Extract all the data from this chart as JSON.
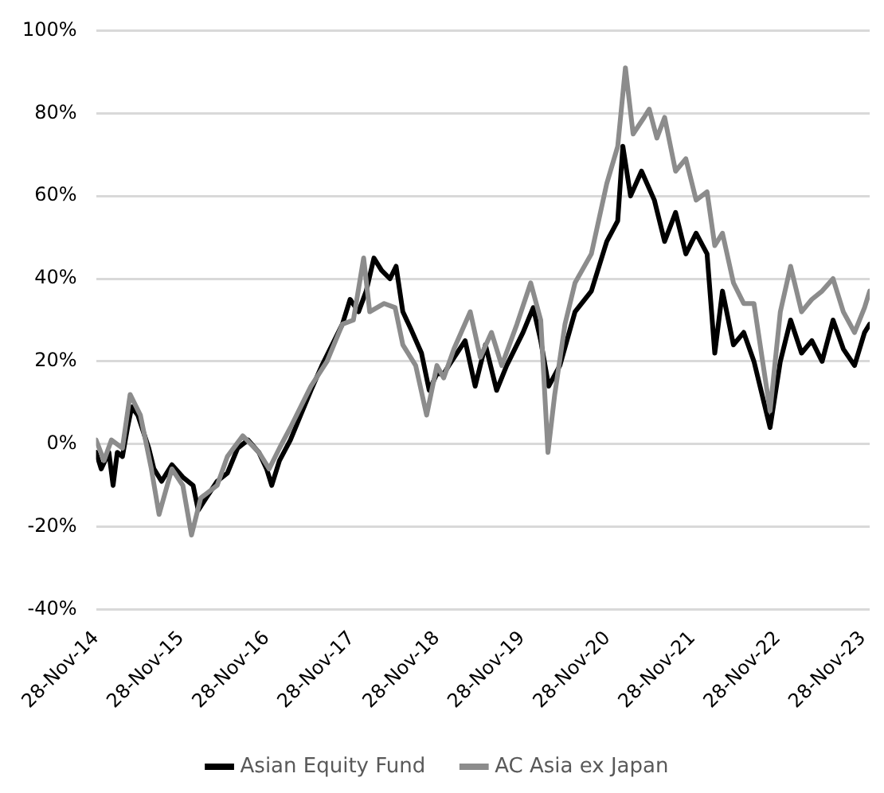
{
  "chart_data": {
    "type": "line",
    "legend": "bottom",
    "grid": "y",
    "marker": "none",
    "line_style": "solid",
    "xlim": [
      "2014-11-28",
      "2023-12-27"
    ],
    "xticks": [
      {
        "value": "2014-11-28",
        "label": "28-Nov-14"
      },
      {
        "value": "2015-11-28",
        "label": "28-Nov-15"
      },
      {
        "value": "2016-11-28",
        "label": "28-Nov-16"
      },
      {
        "value": "2017-11-28",
        "label": "28-Nov-17"
      },
      {
        "value": "2018-11-28",
        "label": "28-Nov-18"
      },
      {
        "value": "2019-11-28",
        "label": "28-Nov-19"
      },
      {
        "value": "2020-11-28",
        "label": "28-Nov-20"
      },
      {
        "value": "2021-11-28",
        "label": "28-Nov-21"
      },
      {
        "value": "2022-11-28",
        "label": "28-Nov-22"
      },
      {
        "value": "2023-11-28",
        "label": "28-Nov-23"
      }
    ],
    "ylim": [
      -40,
      100
    ],
    "yticks": [
      {
        "value": -40,
        "label": "-40%"
      },
      {
        "value": -20,
        "label": "-20%"
      },
      {
        "value": 0,
        "label": "0%"
      },
      {
        "value": 20,
        "label": "20%"
      },
      {
        "value": 40,
        "label": "40%"
      },
      {
        "value": 60,
        "label": "60%"
      },
      {
        "value": 80,
        "label": "80%"
      },
      {
        "value": 100,
        "label": "100%"
      }
    ],
    "series": [
      {
        "name": "AC Asia ex Japan",
        "color": "#8c8c8c",
        "x": [
          "2014-11-28",
          "2015-01-01",
          "2015-02-02",
          "2015-03-21",
          "2015-04-23",
          "2015-06-06",
          "2015-07-23",
          "2015-08-25",
          "2015-10-19",
          "2015-12-05",
          "2016-01-11",
          "2016-02-20",
          "2016-04-30",
          "2016-06-13",
          "2016-08-18",
          "2016-10-26",
          "2016-12-09",
          "2017-01-22",
          "2017-03-10",
          "2017-06-06",
          "2017-08-14",
          "2017-10-19",
          "2017-12-05",
          "2018-01-18",
          "2018-02-13",
          "2018-04-16",
          "2018-06-02",
          "2018-07-05",
          "2018-08-29",
          "2018-10-15",
          "2018-11-28",
          "2018-12-27",
          "2019-02-09",
          "2019-04-20",
          "2019-06-02",
          "2019-07-20",
          "2019-09-02",
          "2019-11-06",
          "2020-01-04",
          "2020-02-16",
          "2020-03-18",
          "2020-04-16",
          "2020-05-30",
          "2020-07-12",
          "2020-09-20",
          "2020-11-25",
          "2021-01-11",
          "2021-02-13",
          "2021-03-18",
          "2021-05-04",
          "2021-05-26",
          "2021-06-28",
          "2021-07-31",
          "2021-09-16",
          "2021-10-30",
          "2021-12-13",
          "2022-01-29",
          "2022-03-03",
          "2022-04-05",
          "2022-05-22",
          "2022-07-05",
          "2022-08-18",
          "2022-10-26",
          "2022-12-09",
          "2023-01-22",
          "2023-03-10",
          "2023-04-23",
          "2023-06-06",
          "2023-07-23",
          "2023-09-05",
          "2023-10-23",
          "2023-12-05",
          "2023-12-27"
        ],
        "values": [
          1,
          -4,
          1,
          -1,
          12,
          7,
          -6,
          -17,
          -6,
          -10,
          -22,
          -13,
          -10,
          -3,
          2,
          -2,
          -6,
          -1,
          4,
          14,
          20,
          29,
          30,
          45,
          32,
          34,
          33,
          24,
          19,
          7,
          19,
          16,
          23,
          32,
          21,
          27,
          19,
          29,
          39,
          30,
          -2,
          12,
          29,
          39,
          46,
          63,
          72,
          91,
          75,
          79,
          81,
          74,
          79,
          66,
          69,
          59,
          61,
          48,
          51,
          39,
          34,
          34,
          8,
          32,
          43,
          32,
          35,
          37,
          40,
          32,
          27,
          33,
          37
        ]
      },
      {
        "name": "Asian Equity Fund",
        "color": "#000000",
        "x": [
          "2014-11-28",
          "2014-12-20",
          "2015-01-22",
          "2015-02-09",
          "2015-02-27",
          "2015-03-21",
          "2015-04-12",
          "2015-04-30",
          "2015-05-26",
          "2015-07-12",
          "2015-08-03",
          "2015-09-05",
          "2015-10-19",
          "2015-12-05",
          "2016-01-18",
          "2016-02-09",
          "2016-03-14",
          "2016-04-30",
          "2016-06-13",
          "2016-07-27",
          "2016-09-09",
          "2016-10-26",
          "2016-11-28",
          "2016-12-20",
          "2017-01-22",
          "2017-03-10",
          "2017-04-23",
          "2017-06-06",
          "2017-07-23",
          "2017-09-05",
          "2017-10-19",
          "2017-11-21",
          "2017-12-27",
          "2018-01-29",
          "2018-03-03",
          "2018-04-05",
          "2018-05-11",
          "2018-06-06",
          "2018-07-05",
          "2018-08-07",
          "2018-09-23",
          "2018-10-26",
          "2018-11-28",
          "2018-12-27",
          "2019-01-18",
          "2019-03-29",
          "2019-05-11",
          "2019-06-24",
          "2019-08-11",
          "2019-09-23",
          "2019-12-02",
          "2020-01-15",
          "2020-02-16",
          "2020-03-21",
          "2020-05-08",
          "2020-07-12",
          "2020-09-20",
          "2020-11-25",
          "2021-01-11",
          "2021-02-02",
          "2021-03-07",
          "2021-04-23",
          "2021-06-17",
          "2021-07-31",
          "2021-09-16",
          "2021-10-30",
          "2021-12-13",
          "2022-01-29",
          "2022-03-03",
          "2022-04-05",
          "2022-05-22",
          "2022-07-05",
          "2022-08-18",
          "2022-10-26",
          "2022-12-09",
          "2023-01-22",
          "2023-03-10",
          "2023-04-23",
          "2023-06-06",
          "2023-07-23",
          "2023-09-05",
          "2023-10-23",
          "2023-12-05",
          "2023-12-27"
        ],
        "values": [
          -2,
          -6,
          -2,
          -10,
          -2,
          -3,
          4,
          9,
          7,
          -1,
          -6,
          -9,
          -5,
          -8,
          -10,
          -16,
          -13,
          -9,
          -7,
          -1,
          1,
          -2,
          -6,
          -10,
          -4,
          1,
          7,
          13,
          19,
          24,
          29,
          35,
          32,
          37,
          45,
          42,
          40,
          43,
          32,
          28,
          22,
          13,
          17,
          17,
          19,
          25,
          14,
          24,
          13,
          19,
          27,
          33,
          25,
          14,
          19,
          32,
          37,
          49,
          54,
          72,
          60,
          66,
          59,
          49,
          56,
          46,
          51,
          46,
          22,
          37,
          24,
          27,
          20,
          4,
          20,
          30,
          22,
          25,
          20,
          30,
          23,
          19,
          27,
          29
        ]
      }
    ]
  }
}
